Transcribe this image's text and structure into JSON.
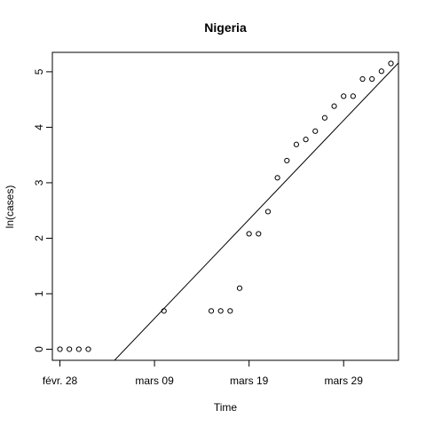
{
  "chart_data": {
    "type": "scatter",
    "title": "Nigeria",
    "xlabel": "Time",
    "ylabel": "ln(cases)",
    "xlim": [
      -0.8,
      35.8
    ],
    "ylim": [
      -0.2,
      5.35
    ],
    "x_ticks": [
      {
        "value": 0,
        "label": "févr. 28"
      },
      {
        "value": 10,
        "label": "mars 09"
      },
      {
        "value": 20,
        "label": "mars 19"
      },
      {
        "value": 30,
        "label": "mars 29"
      }
    ],
    "y_ticks": [
      0,
      1,
      2,
      3,
      4,
      5
    ],
    "points": [
      {
        "x": 0,
        "y": 0
      },
      {
        "x": 1,
        "y": 0
      },
      {
        "x": 2,
        "y": 0
      },
      {
        "x": 3,
        "y": 0
      },
      {
        "x": 11,
        "y": 0.69
      },
      {
        "x": 16,
        "y": 0.69
      },
      {
        "x": 17,
        "y": 0.69
      },
      {
        "x": 18,
        "y": 0.69
      },
      {
        "x": 19,
        "y": 1.1
      },
      {
        "x": 20,
        "y": 2.08
      },
      {
        "x": 21,
        "y": 2.08
      },
      {
        "x": 22,
        "y": 2.48
      },
      {
        "x": 23,
        "y": 3.09
      },
      {
        "x": 24,
        "y": 3.4
      },
      {
        "x": 25,
        "y": 3.69
      },
      {
        "x": 26,
        "y": 3.78
      },
      {
        "x": 27,
        "y": 3.93
      },
      {
        "x": 28,
        "y": 4.17
      },
      {
        "x": 29,
        "y": 4.38
      },
      {
        "x": 30,
        "y": 4.56
      },
      {
        "x": 31,
        "y": 4.56
      },
      {
        "x": 32,
        "y": 4.87
      },
      {
        "x": 33,
        "y": 4.87
      },
      {
        "x": 34,
        "y": 5.01
      },
      {
        "x": 35,
        "y": 5.15
      }
    ],
    "fit_line": {
      "intercept": -1.23,
      "slope": 0.1785
    }
  }
}
